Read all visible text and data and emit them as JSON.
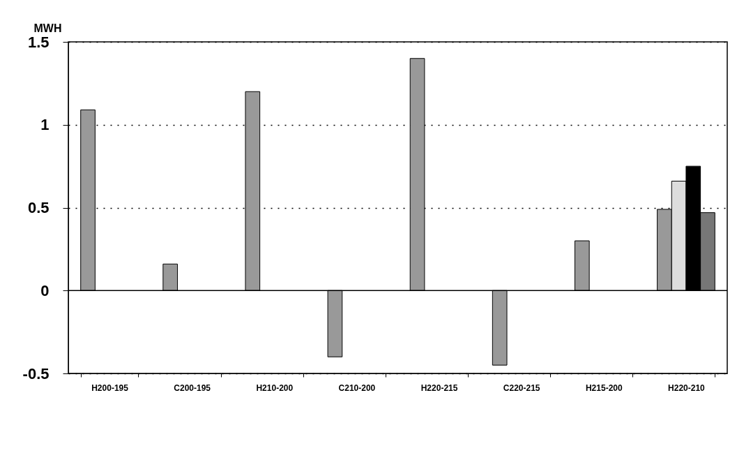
{
  "chart_data": {
    "type": "bar",
    "ylabel": "MWH",
    "categories": [
      "H200-195",
      "C200-195",
      "H210-200",
      "C210-200",
      "H220-215",
      "C220-215",
      "H215-200",
      "H220-210"
    ],
    "series": [
      {
        "color": "#999999",
        "values": [
          1.09,
          0.16,
          1.2,
          -0.4,
          1.4,
          -0.45,
          0.3,
          0.49
        ]
      },
      {
        "color": "#dddddd",
        "values": [
          null,
          null,
          null,
          null,
          null,
          null,
          null,
          0.66
        ]
      },
      {
        "color": "#000000",
        "values": [
          null,
          null,
          null,
          null,
          null,
          null,
          null,
          0.75
        ]
      },
      {
        "color": "#777777",
        "values": [
          null,
          null,
          null,
          null,
          null,
          null,
          null,
          0.47
        ]
      }
    ],
    "ylim": [
      -0.5,
      1.5
    ],
    "yticks": [
      -0.5,
      0,
      0.5,
      1,
      1.5
    ],
    "grid": "y",
    "ref_lines": [
      {
        "axis": "y",
        "value": 0
      }
    ]
  }
}
